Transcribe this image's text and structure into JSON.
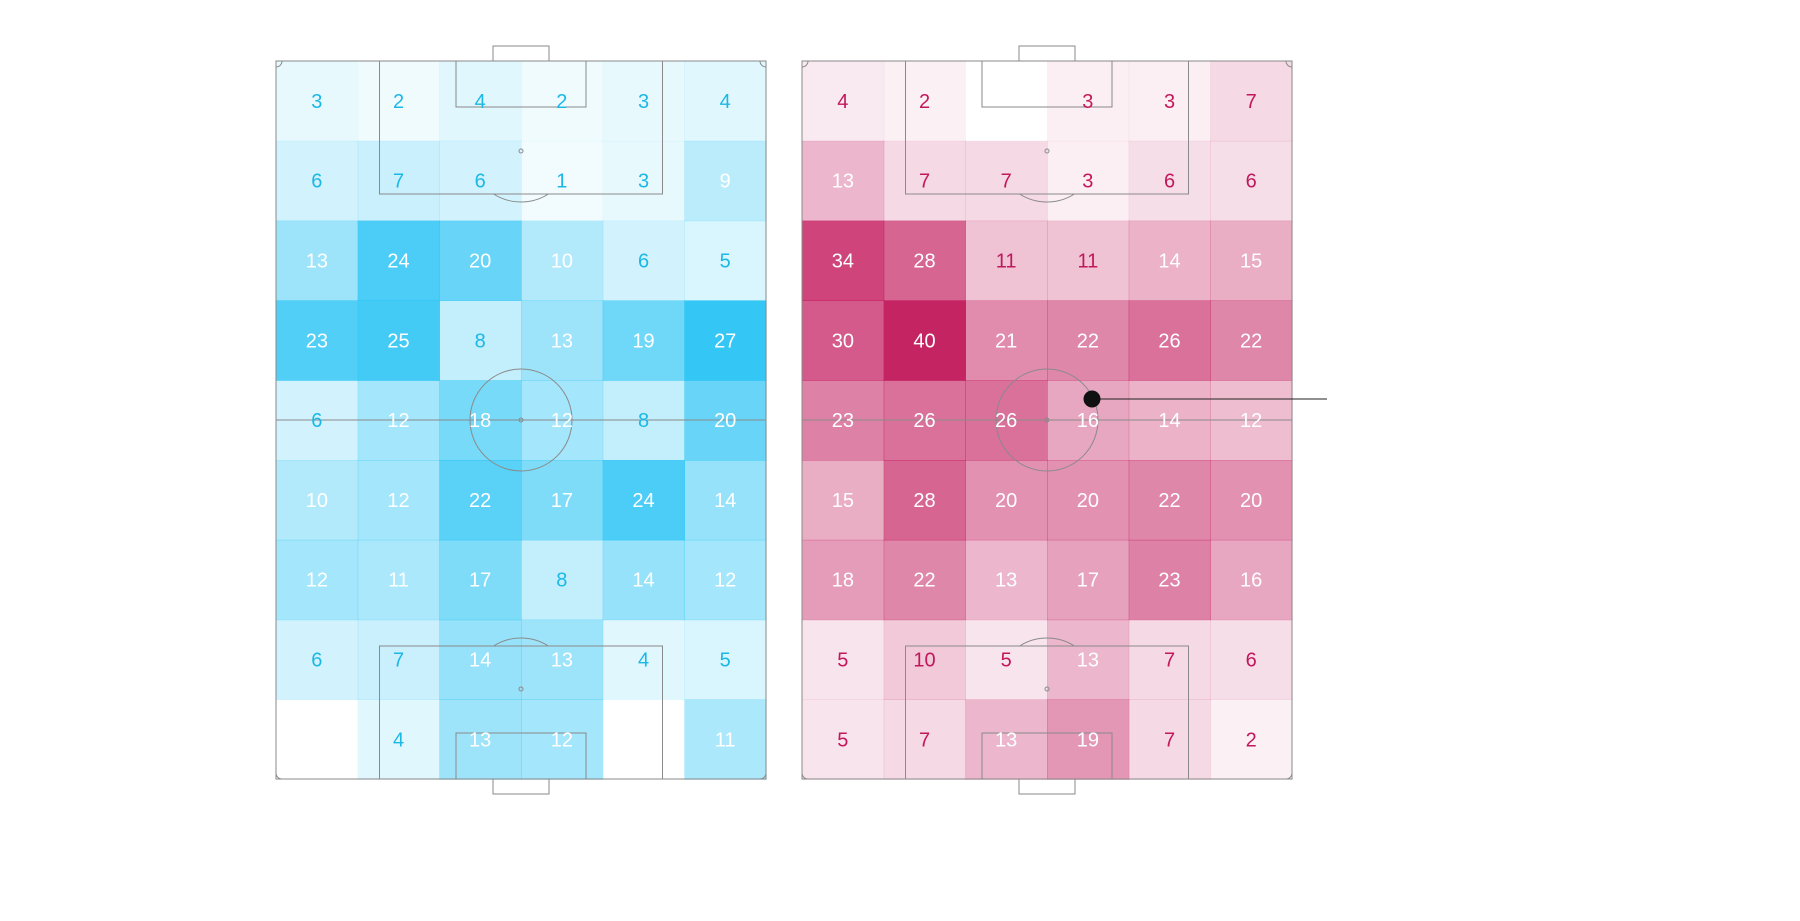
{
  "colors": {
    "blue_base": "#29c4f5",
    "blue_text_dark": "#1bb8e6",
    "pink_base": "#c2185b",
    "pink_text_dark": "#c2185b",
    "line": "#8a8a8a",
    "label_light": "#ffffff"
  },
  "chart_data": [
    {
      "type": "heatmap",
      "name": "left-pitch",
      "rows": 9,
      "cols": 6,
      "max": 27,
      "values": [
        [
          3,
          2,
          4,
          2,
          3,
          4
        ],
        [
          6,
          7,
          6,
          1,
          3,
          9
        ],
        [
          13,
          24,
          20,
          10,
          6,
          5
        ],
        [
          23,
          25,
          8,
          13,
          19,
          27
        ],
        [
          6,
          12,
          18,
          12,
          8,
          20
        ],
        [
          10,
          12,
          22,
          17,
          24,
          14
        ],
        [
          12,
          11,
          17,
          8,
          14,
          12
        ],
        [
          6,
          7,
          14,
          13,
          4,
          5
        ],
        [
          null,
          4,
          13,
          12,
          null,
          11
        ]
      ]
    },
    {
      "type": "heatmap",
      "name": "right-pitch",
      "rows": 9,
      "cols": 6,
      "max": 40,
      "values": [
        [
          4,
          2,
          null,
          3,
          3,
          7
        ],
        [
          13,
          7,
          7,
          3,
          6,
          6
        ],
        [
          34,
          28,
          11,
          11,
          14,
          15
        ],
        [
          30,
          40,
          21,
          22,
          26,
          22
        ],
        [
          23,
          26,
          26,
          16,
          14,
          12
        ],
        [
          15,
          28,
          20,
          20,
          22,
          20
        ],
        [
          18,
          22,
          13,
          17,
          23,
          16
        ],
        [
          5,
          10,
          5,
          13,
          7,
          6
        ],
        [
          5,
          7,
          13,
          19,
          7,
          2
        ]
      ]
    }
  ]
}
